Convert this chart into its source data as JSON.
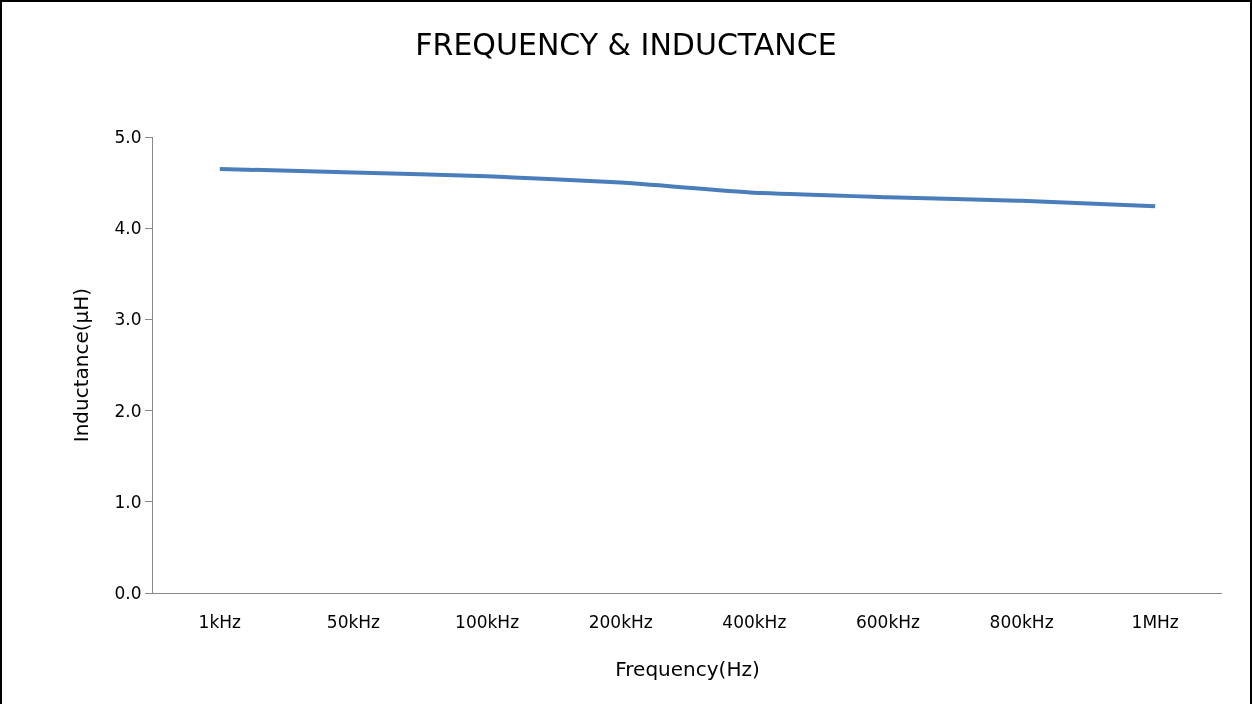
{
  "chart_data": {
    "type": "line",
    "title": "FREQUENCY & INDUCTANCE",
    "xlabel": "Frequency(Hz)",
    "ylabel": "Inductance(μH)",
    "categories": [
      "1kHz",
      "50kHz",
      "100kHz",
      "200kHz",
      "400kHz",
      "600kHz",
      "800kHz",
      "1MHz"
    ],
    "series": [
      {
        "color": "#4a7ebb",
        "values": [
          4.65,
          4.61,
          4.57,
          4.5,
          4.39,
          4.34,
          4.3,
          4.24
        ]
      }
    ],
    "ylim": [
      0,
      5
    ],
    "yticks": [
      {
        "value": 0,
        "label": "0.0"
      },
      {
        "value": 1,
        "label": "1.0"
      },
      {
        "value": 2,
        "label": "2.0"
      },
      {
        "value": 3,
        "label": "3.0"
      },
      {
        "value": 4,
        "label": "4.0"
      },
      {
        "value": 5,
        "label": "5.0"
      }
    ],
    "grid": false,
    "marker": "none",
    "line_style": "solid"
  }
}
